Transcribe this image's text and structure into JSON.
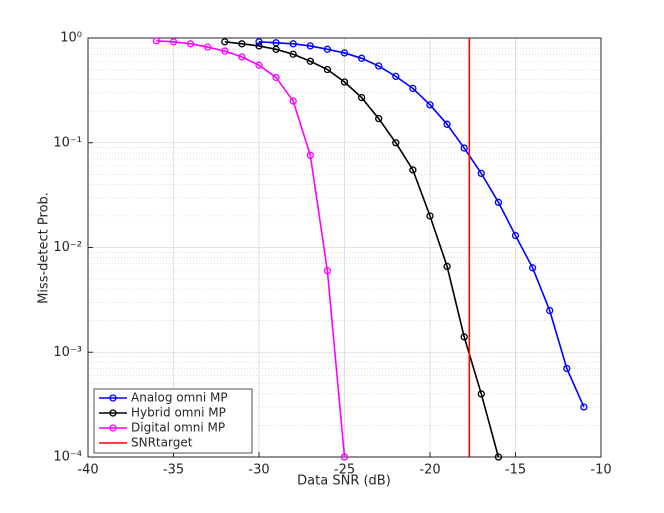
{
  "chart_data": {
    "type": "line",
    "xlabel": "Data SNR (dB)",
    "ylabel": "Miss-detect Prob.",
    "xlim": [
      -40,
      -10
    ],
    "xticks": [
      -40,
      -35,
      -30,
      -25,
      -20,
      -15,
      -10
    ],
    "ylim": [
      0.0001,
      1
    ],
    "yscale": "log",
    "yticks": [
      {
        "value": 1,
        "label": "10⁰"
      },
      {
        "value": 0.1,
        "label": "10⁻¹"
      },
      {
        "value": 0.01,
        "label": "10⁻²"
      },
      {
        "value": 0.001,
        "label": "10⁻³"
      },
      {
        "value": 0.0001,
        "label": "10⁻⁴"
      }
    ],
    "grid": true,
    "legend": "lower left",
    "series": [
      {
        "name": "Analog omni MP",
        "color": "#0000ff",
        "marker": "o",
        "x": [
          -30,
          -29,
          -28,
          -27,
          -26,
          -25,
          -24,
          -23,
          -22,
          -21,
          -20,
          -19,
          -18,
          -17,
          -16,
          -15,
          -14,
          -13,
          -12,
          -11
        ],
        "values": [
          0.92,
          0.9,
          0.88,
          0.84,
          0.78,
          0.72,
          0.64,
          0.54,
          0.43,
          0.33,
          0.23,
          0.15,
          0.089,
          0.051,
          0.027,
          0.013,
          0.0064,
          0.0025,
          0.0007,
          0.0003
        ]
      },
      {
        "name": "Hybrid omni MP",
        "color": "#000000",
        "marker": "o",
        "x": [
          -32,
          -31,
          -30,
          -29,
          -28,
          -27,
          -26,
          -25,
          -24,
          -23,
          -22,
          -21,
          -20,
          -19,
          -18,
          -17,
          -16
        ],
        "values": [
          0.92,
          0.88,
          0.84,
          0.78,
          0.7,
          0.6,
          0.5,
          0.38,
          0.27,
          0.17,
          0.1,
          0.055,
          0.02,
          0.0066,
          0.0014,
          0.0004,
          0.0001
        ]
      },
      {
        "name": "Digital omni MP",
        "color": "#ff00ff",
        "marker": "o",
        "x": [
          -36,
          -35,
          -34,
          -33,
          -32,
          -31,
          -30,
          -29,
          -28,
          -27,
          -26,
          -25
        ],
        "values": [
          0.94,
          0.92,
          0.88,
          0.82,
          0.75,
          0.66,
          0.55,
          0.42,
          0.25,
          0.076,
          0.006,
          0.0001
        ]
      },
      {
        "name": "SNRtarget",
        "color": "#ff0000",
        "x": [
          -17.7,
          -17.7
        ],
        "values": [
          0.0001,
          1
        ]
      }
    ]
  }
}
